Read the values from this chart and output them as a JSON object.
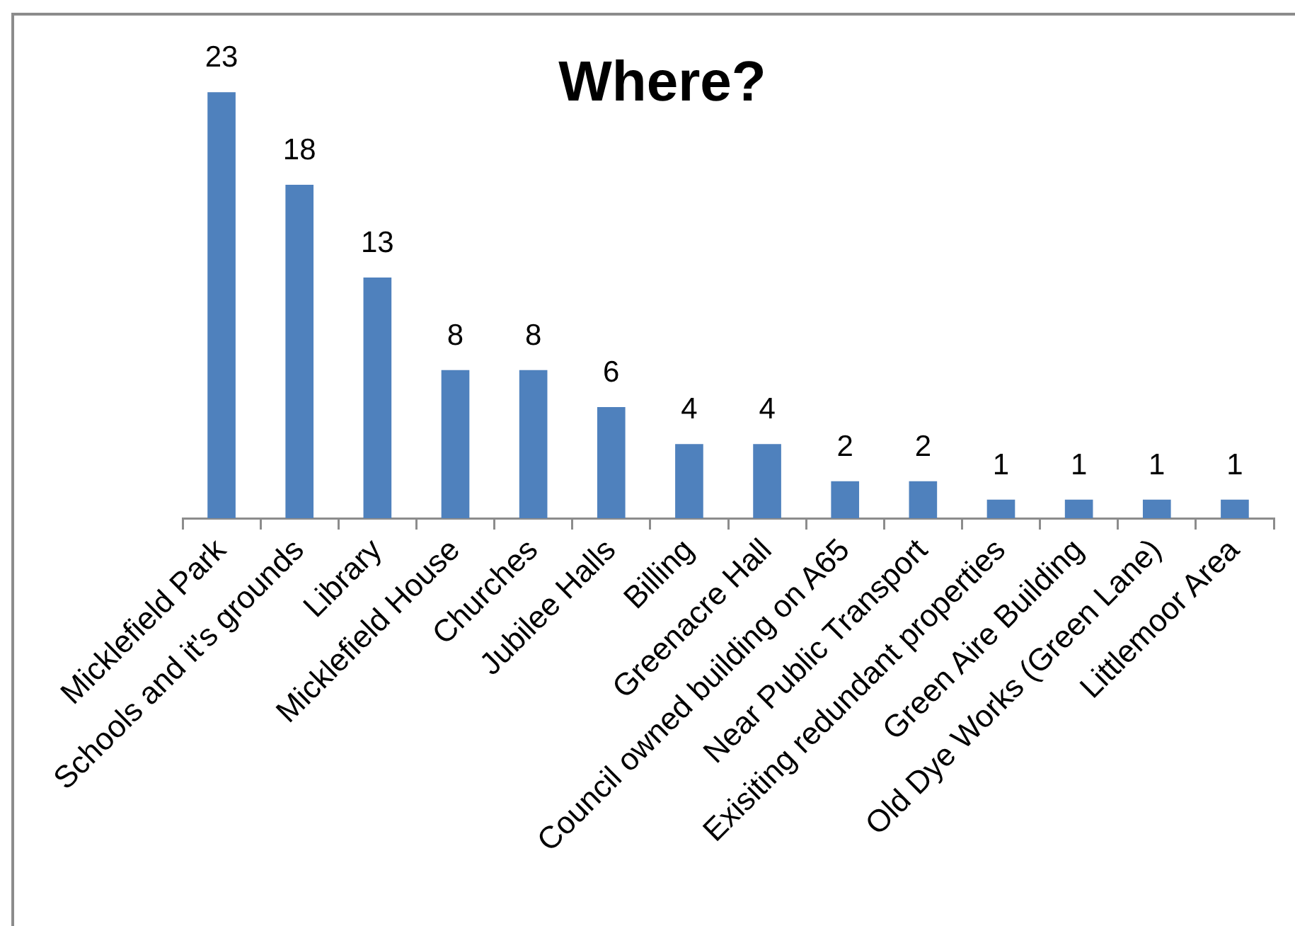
{
  "chart_data": {
    "type": "bar",
    "title": "Where?",
    "categories": [
      "Micklefield Park",
      "Schools and it's grounds",
      "Library",
      "Micklefield House",
      "Churches",
      "Jubilee Halls",
      "Billing",
      "Greenacre Hall",
      "Council owned building on A65",
      "Near Public Transport",
      "Exisiting redundant properties",
      "Green Aire Building",
      "Old Dye Works (Green Lane)",
      "Littlemoor Area"
    ],
    "values": [
      23,
      18,
      13,
      8,
      8,
      6,
      4,
      4,
      2,
      2,
      1,
      1,
      1,
      1
    ],
    "color": "#4f81bd",
    "data_labels": true
  }
}
